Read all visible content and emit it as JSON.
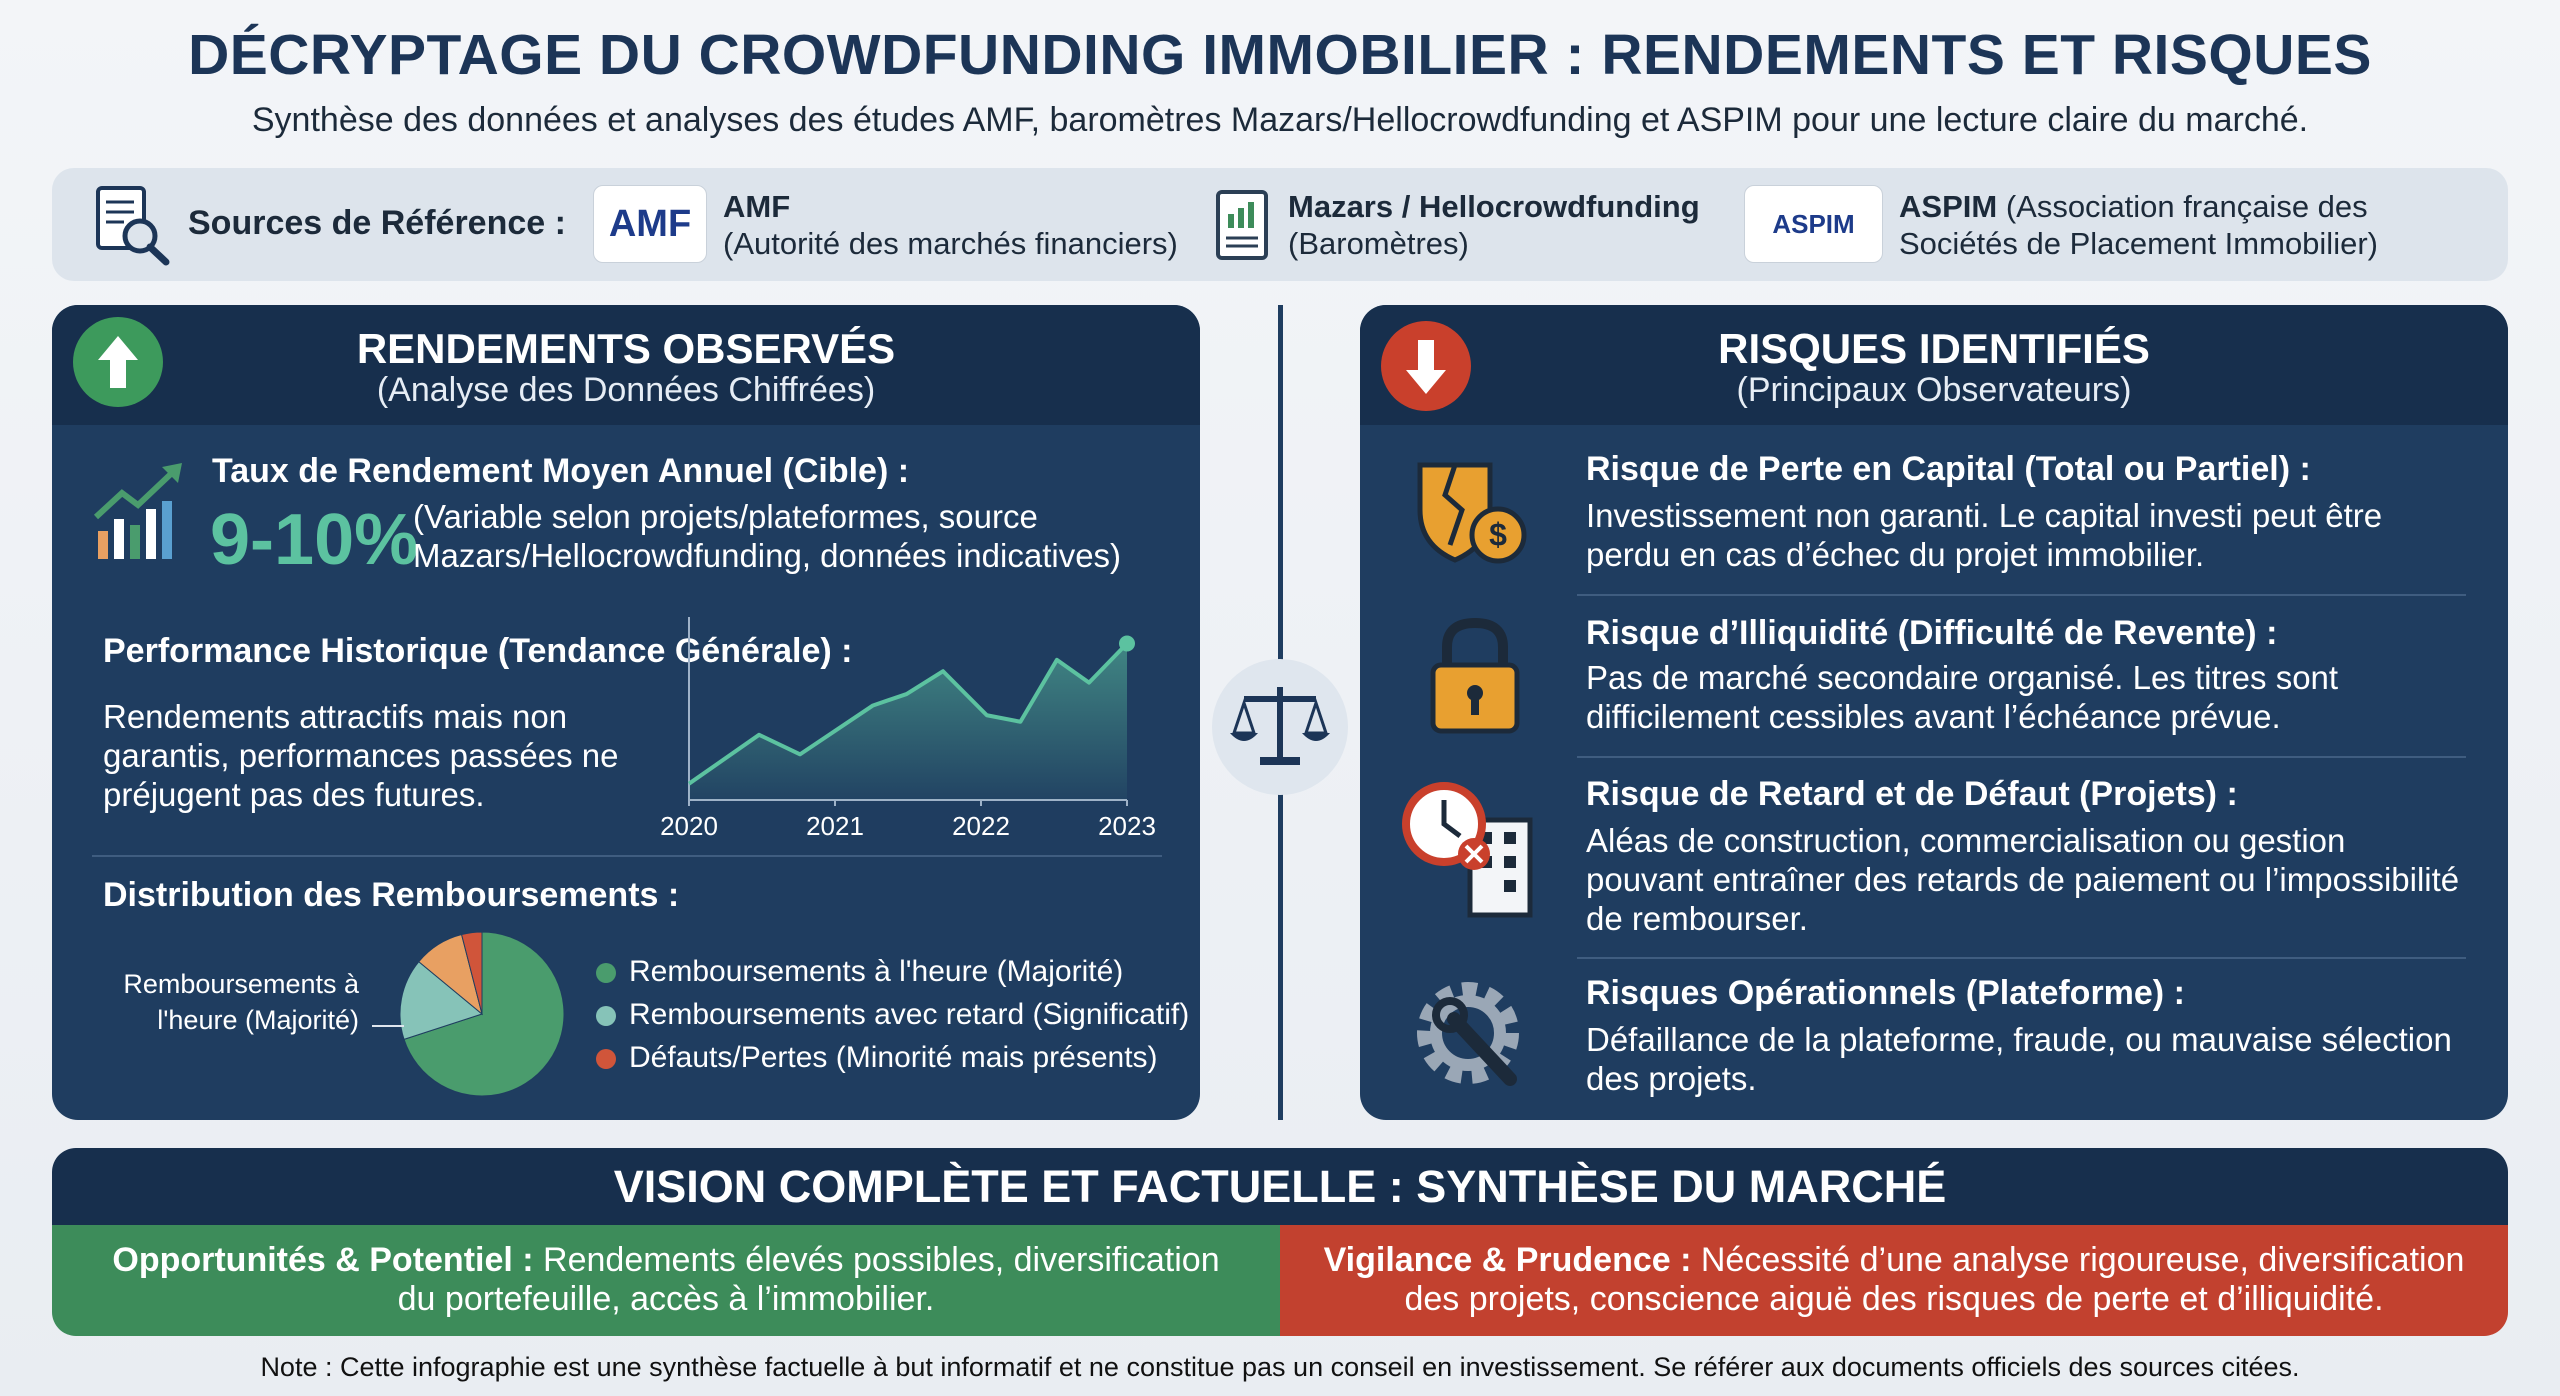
{
  "header": {
    "title": "DÉCRYPTAGE DU CROWDFUNDING IMMOBILIER : RENDEMENTS ET RISQUES",
    "subtitle": "Synthèse des données et analyses des études AMF, baromètres Mazars/Hellocrowdfunding et ASPIM pour une lecture claire du marché."
  },
  "sources": {
    "label": "Sources de Référence :",
    "items": [
      {
        "logo": "AMF",
        "name": "AMF",
        "detail": "(Autorité des marchés financiers)"
      },
      {
        "name": "Mazars / Hellocrowdfunding",
        "detail": "(Baromètres)"
      },
      {
        "logo": "ASPIM",
        "name": "ASPIM",
        "detail": "(Association française des Sociétés de Placement Immobilier)"
      }
    ]
  },
  "returns": {
    "title": "RENDEMENTS OBSERVÉS",
    "subtitle": "(Analyse des Données Chiffrées)",
    "target": {
      "label": "Taux de Rendement Moyen Annuel (Cible) :",
      "value": "9-10%",
      "note": "(Variable selon projets/plateformes, source Mazars/Hellocrowdfunding, données indicatives)"
    },
    "history": {
      "label": "Performance Historique (Tendance Générale) :",
      "text": "Rendements attractifs mais non garantis, performances passées ne préjugent pas des futures.",
      "chart": {
        "type": "line",
        "x": [
          2020,
          2020.48,
          2020.76,
          2021.26,
          2021.49,
          2021.74,
          2022.04,
          2022.27,
          2022.52,
          2022.74,
          2023
        ],
        "values": [
          10,
          40,
          28,
          58,
          65,
          79,
          52,
          48,
          86,
          72,
          96
        ],
        "xlim": [
          2020,
          2023
        ],
        "xticks": [
          2020,
          2021,
          2022,
          2023
        ],
        "ylim": [
          0,
          100
        ],
        "color": "#5cc2a0"
      }
    },
    "distribution": {
      "label": "Distribution des Remboursements :",
      "chart": {
        "type": "pie",
        "values": [
          70,
          16,
          10,
          4
        ],
        "colors": [
          "#4a9c6d",
          "#86c3b8",
          "#e8a062",
          "#d0553a"
        ],
        "callout": "Remboursements à\nl'heure (Majorité)",
        "legend": [
          {
            "label": "Remboursements à l'heure (Majorité)",
            "color": "#4a9c6d"
          },
          {
            "label": "Remboursements avec retard (Significatif)",
            "color": "#86c3b8"
          },
          {
            "label": "Défauts/Pertes (Minorité mais présents)",
            "color": "#d0553a"
          }
        ]
      }
    }
  },
  "risks": {
    "title": "RISQUES IDENTIFIÉS",
    "subtitle": "(Principaux Observateurs)",
    "items": [
      {
        "title": "Risque de Perte en Capital (Total ou Partiel) :",
        "text": "Investissement non garanti. Le capital investi peut être perdu en cas d’échec du projet immobilier."
      },
      {
        "title": "Risque d’Illiquidité (Difficulté de Revente) :",
        "text": "Pas de marché secondaire organisé. Les titres sont difficilement cessibles avant l’échéance prévue."
      },
      {
        "title": "Risque de Retard et de Défaut (Projets) :",
        "text": "Aléas de construction, commercialisation ou gestion pouvant entraîner des retards de paiement ou l’impossibilité de rembourser."
      },
      {
        "title": "Risques Opérationnels (Plateforme) :",
        "text": "Défaillance de la plateforme, fraude, ou mauvaise sélection des projets."
      }
    ]
  },
  "synthesis": {
    "title": "VISION COMPLÈTE ET FACTUELLE : SYNTHÈSE DU MARCHÉ",
    "opportunities": {
      "label": "Opportunités & Potentiel :",
      "text": "Rendements élevés possibles, diversification du portefeuille, accès à l’immobilier."
    },
    "vigilance": {
      "label": "Vigilance & Prudence :",
      "text": "Nécessité d’une analyse rigoureuse, diversification des projets, conscience aiguë des risques de perte et d’illiquidité."
    }
  },
  "note": "Note : Cette infographie est une synthèse factuelle à but informatif et ne constitue pas un conseil en investissement. Se référer aux documents officiels des sources citées."
}
